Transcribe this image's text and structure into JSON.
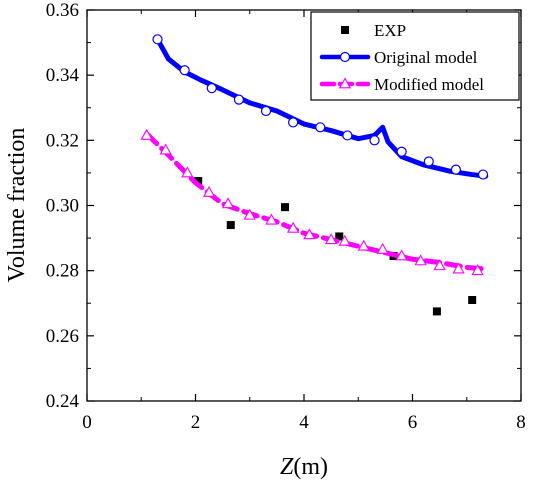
{
  "chart_data": {
    "type": "line",
    "xlabel": {
      "italic": "Z",
      "rest": "(m)"
    },
    "ylabel": "Volume fraction",
    "xlim": [
      0,
      8
    ],
    "ylim": [
      0.24,
      0.36
    ],
    "x_ticks": [
      0,
      2,
      4,
      6,
      8
    ],
    "y_ticks": [
      0.24,
      0.26,
      0.28,
      0.3,
      0.32,
      0.34,
      0.36
    ],
    "x_tick_labels": [
      "0",
      "2",
      "4",
      "6",
      "8"
    ],
    "y_tick_labels": [
      "0.24",
      "0.26",
      "0.28",
      "0.30",
      "0.32",
      "0.34",
      "0.36"
    ],
    "grid": false,
    "legend_position": "top-right",
    "series": [
      {
        "name": "EXP",
        "style": "scatter",
        "marker": "square",
        "color": "#000000",
        "x": [
          2.05,
          2.65,
          3.65,
          4.65,
          5.65,
          6.45,
          7.1
        ],
        "y": [
          0.3075,
          0.294,
          0.2995,
          0.2905,
          0.2845,
          0.2675,
          0.271
        ]
      },
      {
        "name": "Original model",
        "style": "line",
        "line": "solid",
        "marker": "circle",
        "color": "#0000ff",
        "x": [
          1.3,
          1.5,
          1.8,
          2.1,
          2.5,
          3.0,
          3.5,
          4.0,
          4.5,
          5.0,
          5.3,
          5.45,
          5.55,
          5.8,
          6.2,
          6.7,
          7.1,
          7.35
        ],
        "y": [
          0.351,
          0.345,
          0.341,
          0.3385,
          0.3355,
          0.3315,
          0.329,
          0.325,
          0.323,
          0.3205,
          0.3215,
          0.324,
          0.3195,
          0.315,
          0.3125,
          0.3105,
          0.3095,
          0.309
        ],
        "marker_x": [
          1.3,
          1.8,
          2.3,
          2.8,
          3.3,
          3.8,
          4.3,
          4.8,
          5.3,
          5.8,
          6.3,
          6.8,
          7.3
        ],
        "marker_y": [
          0.351,
          0.3415,
          0.336,
          0.3325,
          0.329,
          0.3255,
          0.324,
          0.3215,
          0.32,
          0.3165,
          0.3135,
          0.311,
          0.3095
        ]
      },
      {
        "name": "Modified model",
        "style": "line",
        "line": "dashed",
        "marker": "triangle-open",
        "color": "#ff00ff",
        "x": [
          1.1,
          1.5,
          2.0,
          2.5,
          3.0,
          3.5,
          4.0,
          4.5,
          5.0,
          5.5,
          6.0,
          6.5,
          7.0,
          7.35
        ],
        "y": [
          0.322,
          0.3155,
          0.307,
          0.3005,
          0.2975,
          0.295,
          0.2915,
          0.2895,
          0.2875,
          0.2855,
          0.2835,
          0.2825,
          0.281,
          0.2805
        ],
        "marker_x": [
          1.1,
          1.45,
          1.85,
          2.25,
          2.6,
          3.0,
          3.4,
          3.8,
          4.1,
          4.5,
          4.75,
          5.1,
          5.45,
          5.8,
          6.15,
          6.5,
          6.85,
          7.2
        ],
        "marker_y": [
          0.3215,
          0.317,
          0.31,
          0.304,
          0.3005,
          0.297,
          0.2955,
          0.293,
          0.291,
          0.2895,
          0.289,
          0.2875,
          0.2865,
          0.2845,
          0.283,
          0.2815,
          0.2805,
          0.28
        ]
      }
    ]
  }
}
